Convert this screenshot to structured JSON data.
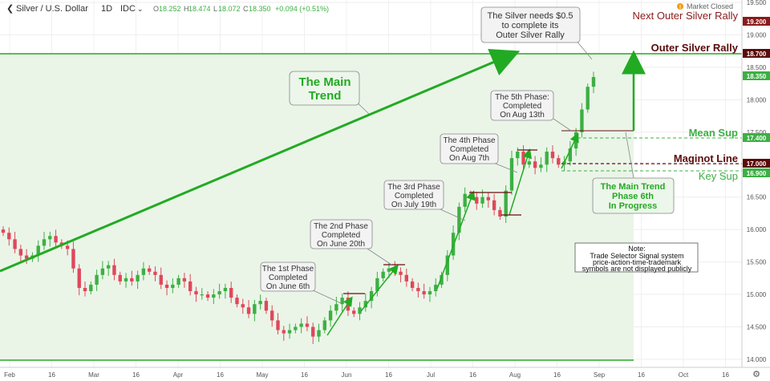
{
  "header": {
    "symbol": "Silver / U.S. Dollar",
    "interval": "1D",
    "source": "IDC",
    "o_label": "O",
    "o": "18.252",
    "h_label": "H",
    "h": "18.474",
    "l_label": "L",
    "l": "18.072",
    "c_label": "C",
    "c": "18.350",
    "change": "+0.094 (+0.51%)",
    "market_status": "Market Closed"
  },
  "colors": {
    "up": "#3cb043",
    "down": "#e0475b",
    "trend": "#22aa22",
    "resistance": "#6b0f0f",
    "panel": "#eaf5e8"
  },
  "chart_data": {
    "type": "candlestick",
    "ylim": [
      13.95,
      19.5
    ],
    "y_ticks": [
      "14.000",
      "14.500",
      "15.000",
      "15.500",
      "16.000",
      "16.500",
      "17.000",
      "17.500",
      "18.000",
      "18.500",
      "19.000",
      "19.500"
    ],
    "x_ticks": [
      "Feb",
      "16",
      "Mar",
      "16",
      "Apr",
      "16",
      "May",
      "16",
      "Jun",
      "16",
      "Jul",
      "16",
      "Aug",
      "16",
      "Sep",
      "16",
      "Oct",
      "16"
    ],
    "close_path": [
      15.95,
      15.85,
      15.7,
      15.6,
      15.55,
      15.6,
      15.75,
      15.85,
      15.9,
      15.8,
      15.75,
      15.7,
      15.4,
      15.1,
      15.05,
      15.15,
      15.3,
      15.4,
      15.45,
      15.3,
      15.2,
      15.25,
      15.2,
      15.3,
      15.4,
      15.35,
      15.3,
      15.15,
      15.1,
      15.15,
      15.25,
      15.2,
      15.05,
      15.0,
      15.0,
      14.95,
      15.0,
      15.05,
      15.1,
      14.95,
      14.85,
      14.8,
      14.7,
      14.85,
      14.9,
      14.75,
      14.6,
      14.45,
      14.4,
      14.45,
      14.5,
      14.55,
      14.5,
      14.35,
      14.45,
      14.6,
      14.75,
      14.85,
      14.95,
      14.75,
      14.7,
      14.8,
      14.9,
      15.05,
      15.25,
      15.35,
      15.4,
      15.35,
      15.3,
      15.2,
      15.1,
      15.05,
      15.0,
      15.05,
      15.15,
      15.3,
      15.6,
      15.95,
      16.35,
      16.55,
      16.5,
      16.4,
      16.5,
      16.45,
      16.3,
      16.2,
      16.6,
      17.1,
      17.2,
      17.0,
      17.05,
      16.95,
      17.0,
      17.2,
      17.1,
      17.0,
      17.05,
      17.25,
      17.5,
      17.85,
      18.2,
      18.35
    ],
    "price_labels": [
      {
        "label": "Next Outer Silver Rally",
        "value": "19.200"
      },
      {
        "label": "Outer Silver Rally",
        "value": "18.700"
      },
      {
        "label": "",
        "value": "18.350"
      },
      {
        "label": "Mean Sup",
        "value": "17.400"
      },
      {
        "label": "Maginot Line",
        "value": "17.000"
      },
      {
        "label": "Key Sup",
        "value": "16.900"
      }
    ],
    "annotations": [
      {
        "title": "The Main",
        "title2": "Trend"
      },
      {
        "text": [
          "The Silver needs $0.5",
          "to complete its",
          "Outer Silver Rally"
        ]
      },
      {
        "text": [
          "The 5th Phase:",
          "Completed",
          "On Aug 13th"
        ]
      },
      {
        "text": [
          "The 4th Phase",
          "Completed",
          "On Aug 7th"
        ]
      },
      {
        "text": [
          "The 3rd Phase",
          "Completed",
          "On July 19th"
        ]
      },
      {
        "text": [
          "The 2nd Phase",
          "Completed",
          "On June 20th"
        ]
      },
      {
        "text": [
          "The 1st Phase",
          "Completed",
          "On June 6th"
        ]
      },
      {
        "text": [
          "The Main Trend",
          "Phase 6th",
          "In Progress"
        ]
      },
      {
        "text": [
          "Note:",
          "Trade Selector Signal system",
          "price-action-time-trademark",
          "symbols are not displayed publicly"
        ]
      }
    ]
  }
}
